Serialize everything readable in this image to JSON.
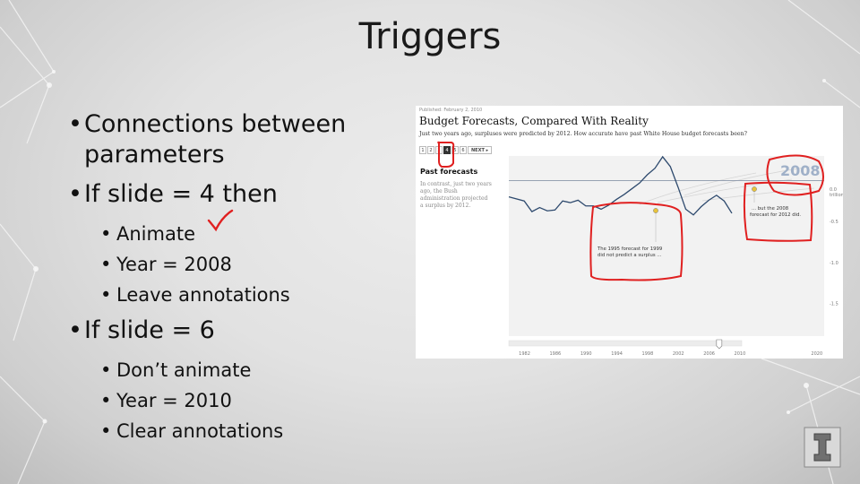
{
  "slide": {
    "title": "Triggers",
    "bullets": [
      {
        "text": "Connections between parameters"
      },
      {
        "text": "If slide = 4 then",
        "children": [
          "Animate",
          "Year = 2008",
          "Leave annotations"
        ]
      },
      {
        "text": "If slide = 6",
        "children": [
          "Don’t animate",
          "Year = 2010",
          "Clear annotations"
        ]
      }
    ]
  },
  "embedded": {
    "published": "Published: February 2, 2010",
    "title": "Budget Forecasts, Compared With Reality",
    "subtitle": "Just two years ago, surpluses were predicted by 2012. How accurate have past White House budget forecasts been?",
    "pager": {
      "pages": [
        "1",
        "2",
        "3",
        "4",
        "5",
        "6"
      ],
      "active": "4",
      "next": "NEXT ▸"
    },
    "sidebar_heading": "Past forecasts",
    "sidebar_text": "In contrast, just two years ago, the Bush administration projected a surplus by 2012.",
    "year_badge": "2008",
    "annotation_1995_line1": "The 1995 forecast for 1999",
    "annotation_1995_line2": "did not predict a surplus ...",
    "annotation_2008_line1": "... but the 2008",
    "annotation_2008_line2": "forecast for 2012 did.",
    "zero_label_line1": "0.0",
    "zero_label_line2": "trillion"
  },
  "chart_data": {
    "type": "line",
    "title": "Budget Forecasts, Compared With Reality",
    "x_ticks": [
      "1982",
      "1986",
      "1990",
      "1994",
      "1998",
      "2002",
      "2006",
      "2010",
      "2020"
    ],
    "y_ticks": [
      "0.0",
      "-0.5",
      "-1.0",
      "-1.5"
    ],
    "ylim": [
      -1.9,
      0.3
    ],
    "slider_year": 2008,
    "series": [
      {
        "name": "",
        "x": [
          1980,
          1982,
          1983,
          1984,
          1985,
          1986,
          1987,
          1988,
          1989,
          1990,
          1991,
          1992,
          1993,
          1994,
          1995,
          1996,
          1997,
          1998,
          1999,
          2000,
          2001,
          2002,
          2003,
          2004,
          2005,
          2006,
          2007,
          2008,
          2009
        ],
        "y": [
          -0.2,
          -0.25,
          -0.38,
          -0.33,
          -0.37,
          -0.36,
          -0.25,
          -0.27,
          -0.24,
          -0.31,
          -0.31,
          -0.35,
          -0.3,
          -0.23,
          -0.17,
          -0.1,
          -0.03,
          0.07,
          0.15,
          0.29,
          0.17,
          -0.08,
          -0.35,
          -0.42,
          -0.32,
          -0.24,
          -0.18,
          -0.25,
          -0.4
        ]
      }
    ],
    "forecast_1999_from_1995": -0.19,
    "forecast_2012_from_2008": 0.06
  }
}
